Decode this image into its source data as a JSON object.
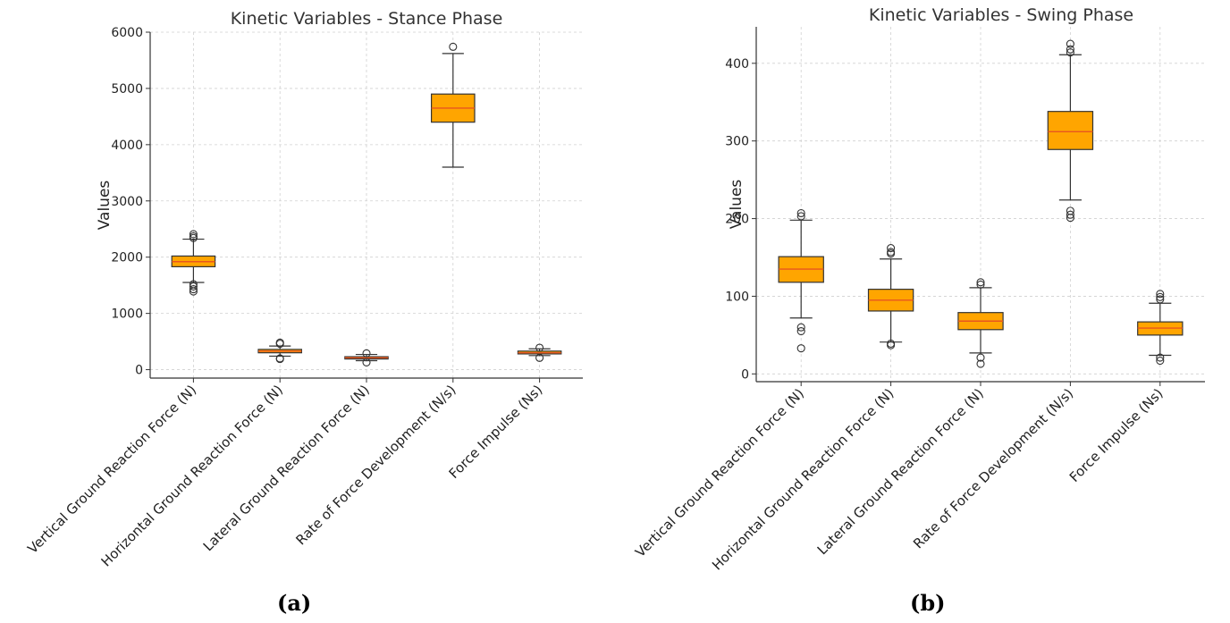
{
  "chart_data": [
    {
      "type": "box",
      "title": "Kinetic Variables - Stance Phase",
      "ylabel": "Values",
      "xlabel": "",
      "ylim": [
        -150,
        6000
      ],
      "yticks": [
        0,
        1000,
        2000,
        3000,
        4000,
        5000,
        6000
      ],
      "grid": true,
      "categories": [
        "Vertical Ground Reaction Force (N)",
        "Horizontal Ground Reaction Force (N)",
        "Lateral Ground Reaction Force (N)",
        "Rate of Force Development (N/s)",
        "Force Impulse (Ns)"
      ],
      "boxes": [
        {
          "whisker_low": 1550,
          "q1": 1830,
          "median": 1920,
          "q3": 2020,
          "whisker_high": 2320,
          "outliers": [
            1390,
            1430,
            1480,
            1520,
            2340,
            2370,
            2410
          ]
        },
        {
          "whisker_low": 240,
          "q1": 300,
          "median": 330,
          "q3": 360,
          "whisker_high": 420,
          "outliers": [
            190,
            200,
            460,
            480
          ]
        },
        {
          "whisker_low": 160,
          "q1": 190,
          "median": 210,
          "q3": 230,
          "whisker_high": 270,
          "outliers": [
            130,
            290
          ]
        },
        {
          "whisker_low": 3600,
          "q1": 4400,
          "median": 4650,
          "q3": 4900,
          "whisker_high": 5620,
          "outliers": [
            5740
          ]
        },
        {
          "whisker_low": 250,
          "q1": 280,
          "median": 300,
          "q3": 330,
          "whisker_high": 370,
          "outliers": [
            210,
            390
          ]
        }
      ],
      "box_color": "#FFA500",
      "median_color": "#E8561F"
    },
    {
      "type": "box",
      "title": "Kinetic Variables - Swing Phase",
      "ylabel": "Values",
      "xlabel": "",
      "ylim": [
        -10,
        447
      ],
      "yticks": [
        0,
        100,
        200,
        300,
        400
      ],
      "grid": true,
      "categories": [
        "Vertical Ground Reaction Force (N)",
        "Horizontal Ground Reaction Force (N)",
        "Lateral Ground Reaction Force (N)",
        "Rate of Force Development (N/s)",
        "Force Impulse (Ns)"
      ],
      "boxes": [
        {
          "whisker_low": 72,
          "q1": 118,
          "median": 135,
          "q3": 151,
          "whisker_high": 198,
          "outliers": [
            33,
            55,
            60,
            203,
            207
          ]
        },
        {
          "whisker_low": 41,
          "q1": 81,
          "median": 95,
          "q3": 109,
          "whisker_high": 148,
          "outliers": [
            37,
            39,
            155,
            157,
            162
          ]
        },
        {
          "whisker_low": 27,
          "q1": 57,
          "median": 68,
          "q3": 79,
          "whisker_high": 111,
          "outliers": [
            13,
            21,
            115,
            118
          ]
        },
        {
          "whisker_low": 224,
          "q1": 289,
          "median": 312,
          "q3": 338,
          "whisker_high": 411,
          "outliers": [
            201,
            205,
            210,
            414,
            418,
            425
          ]
        },
        {
          "whisker_low": 24,
          "q1": 50,
          "median": 59,
          "q3": 67,
          "whisker_high": 91,
          "outliers": [
            17,
            21,
            96,
            99,
            103
          ]
        }
      ],
      "box_color": "#FFA500",
      "median_color": "#E8561F"
    }
  ],
  "captions": [
    "(a)",
    "(b)"
  ]
}
